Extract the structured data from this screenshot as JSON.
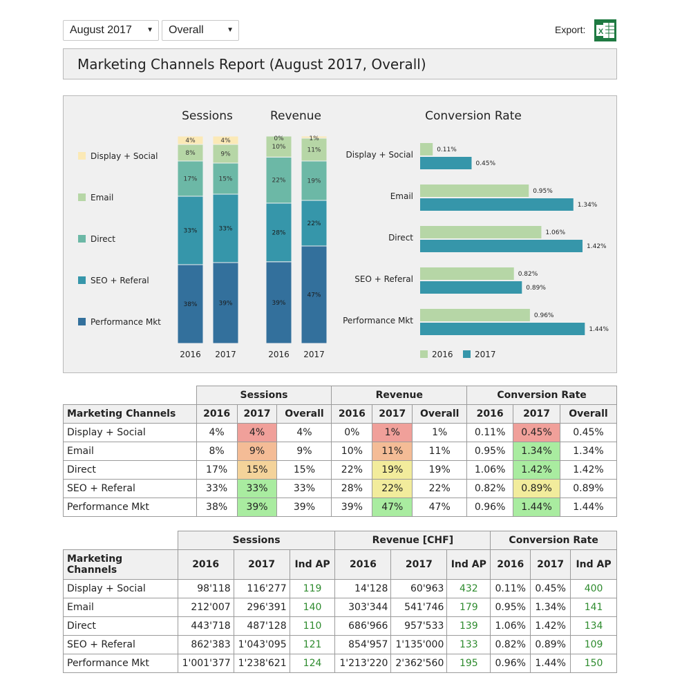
{
  "controls": {
    "month_value": "August 2017",
    "scope_value": "Overall",
    "export_label": "Export:",
    "export_icon": "excel-icon"
  },
  "header": {
    "title": "Marketing Channels Report (August 2017, Overall)"
  },
  "colors": {
    "Display + Social": "#fbe9b6",
    "Email": "#b6d6a6",
    "Direct": "#6cb8a6",
    "SEO + Referal": "#3696aa",
    "Performance Mkt": "#33709c",
    "cr_2016": "#b6d6a6",
    "cr_2017": "#3696aa",
    "heat_red": "#f0a09a",
    "heat_orange": "#f4bc96",
    "heat_tan": "#f4d39a",
    "heat_yellow": "#f2ec9c",
    "heat_green": "#a9eca0"
  },
  "chart_data": [
    {
      "type": "bar",
      "stacked": true,
      "title": "Sessions",
      "categories": [
        "2016",
        "2017"
      ],
      "series": [
        {
          "name": "Performance Mkt",
          "values": [
            38,
            39
          ],
          "labels": [
            "38%",
            "39%"
          ]
        },
        {
          "name": "SEO + Referal",
          "values": [
            33,
            33
          ],
          "labels": [
            "33%",
            "33%"
          ]
        },
        {
          "name": "Direct",
          "values": [
            17,
            15
          ],
          "labels": [
            "17%",
            "15%"
          ]
        },
        {
          "name": "Email",
          "values": [
            8,
            9
          ],
          "labels": [
            "8%",
            "9%"
          ]
        },
        {
          "name": "Display + Social",
          "values": [
            4,
            4
          ],
          "labels": [
            "4%",
            "4%"
          ]
        }
      ],
      "legend": "left"
    },
    {
      "type": "bar",
      "stacked": true,
      "title": "Revenue",
      "categories": [
        "2016",
        "2017"
      ],
      "series": [
        {
          "name": "Performance Mkt",
          "values": [
            39,
            47
          ],
          "labels": [
            "39%",
            "47%"
          ]
        },
        {
          "name": "SEO + Referal",
          "values": [
            28,
            22
          ],
          "labels": [
            "28%",
            "22%"
          ]
        },
        {
          "name": "Direct",
          "values": [
            22,
            19
          ],
          "labels": [
            "22%",
            "19%"
          ]
        },
        {
          "name": "Email",
          "values": [
            10,
            11
          ],
          "labels": [
            "10%",
            "11%"
          ]
        },
        {
          "name": "Display + Social",
          "values": [
            0,
            1
          ],
          "labels": [
            "0%",
            "1%"
          ]
        }
      ]
    },
    {
      "type": "bar",
      "orientation": "horizontal",
      "title": "Conversion Rate",
      "categories": [
        "Display + Social",
        "Email",
        "Direct",
        "SEO + Referal",
        "Performance Mkt"
      ],
      "series": [
        {
          "name": "2016",
          "values": [
            0.11,
            0.95,
            1.06,
            0.82,
            0.96
          ],
          "labels": [
            "0.11%",
            "0.95%",
            "1.06%",
            "0.82%",
            "0.96%"
          ]
        },
        {
          "name": "2017",
          "values": [
            0.45,
            1.34,
            1.42,
            0.89,
            1.44
          ],
          "labels": [
            "0.45%",
            "1.34%",
            "1.42%",
            "0.89%",
            "1.44%"
          ]
        }
      ],
      "legend": "bottom"
    }
  ],
  "table1": {
    "groups": [
      "Sessions",
      "Revenue",
      "Conversion Rate"
    ],
    "headers": [
      "Marketing Channels",
      "2016",
      "2017",
      "Overall",
      "2016",
      "2017",
      "Overall",
      "2016",
      "2017",
      "Overall"
    ],
    "rows": [
      {
        "cells": [
          "Display + Social",
          "4%",
          "4%",
          "4%",
          "0%",
          "1%",
          "1%",
          "0.11%",
          "0.45%",
          "0.45%"
        ],
        "heat": [
          "red",
          "red",
          "red"
        ]
      },
      {
        "cells": [
          "Email",
          "8%",
          "9%",
          "9%",
          "10%",
          "11%",
          "11%",
          "0.95%",
          "1.34%",
          "1.34%"
        ],
        "heat": [
          "orange",
          "orange",
          "green"
        ]
      },
      {
        "cells": [
          "Direct",
          "17%",
          "15%",
          "15%",
          "22%",
          "19%",
          "19%",
          "1.06%",
          "1.42%",
          "1.42%"
        ],
        "heat": [
          "tan",
          "yellow",
          "green"
        ]
      },
      {
        "cells": [
          "SEO + Referal",
          "33%",
          "33%",
          "33%",
          "28%",
          "22%",
          "22%",
          "0.82%",
          "0.89%",
          "0.89%"
        ],
        "heat": [
          "green",
          "yellow",
          "yellow"
        ]
      },
      {
        "cells": [
          "Performance Mkt",
          "38%",
          "39%",
          "39%",
          "39%",
          "47%",
          "47%",
          "0.96%",
          "1.44%",
          "1.44%"
        ],
        "heat": [
          "green",
          "green",
          "green"
        ]
      }
    ]
  },
  "table2": {
    "groups": [
      "Sessions",
      "Revenue [CHF]",
      "Conversion Rate"
    ],
    "headers": [
      "Marketing Channels",
      "2016",
      "2017",
      "Ind AP",
      "2016",
      "2017",
      "Ind AP",
      "2016",
      "2017",
      "Ind AP"
    ],
    "rows": [
      [
        "Display + Social",
        "98'118",
        "116'277",
        "119",
        "14'128",
        "60'963",
        "432",
        "0.11%",
        "0.45%",
        "400"
      ],
      [
        "Email",
        "212'007",
        "296'391",
        "140",
        "303'344",
        "541'746",
        "179",
        "0.95%",
        "1.34%",
        "141"
      ],
      [
        "Direct",
        "443'718",
        "487'128",
        "110",
        "686'966",
        "957'533",
        "139",
        "1.06%",
        "1.42%",
        "134"
      ],
      [
        "SEO + Referal",
        "862'383",
        "1'043'095",
        "121",
        "854'957",
        "1'135'000",
        "133",
        "0.82%",
        "0.89%",
        "109"
      ],
      [
        "Performance Mkt",
        "1'001'377",
        "1'238'621",
        "124",
        "1'213'220",
        "2'362'560",
        "195",
        "0.96%",
        "1.44%",
        "150"
      ]
    ]
  }
}
